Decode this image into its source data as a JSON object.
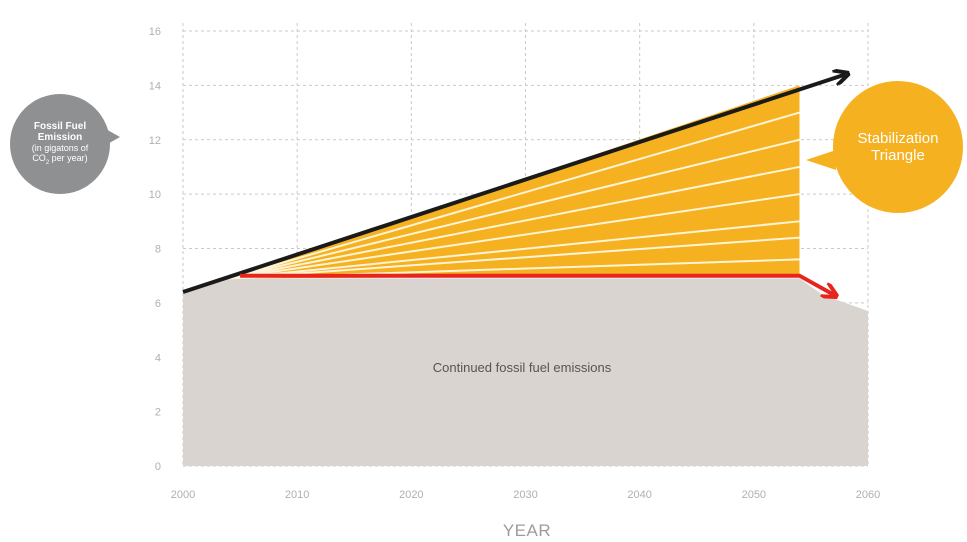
{
  "chart_data": {
    "type": "area",
    "xlabel": "YEAR",
    "xlim": [
      2000,
      2060
    ],
    "ylim": [
      0,
      16
    ],
    "x_ticks": [
      "2000",
      "2010",
      "2020",
      "2030",
      "2040",
      "2050",
      "2060"
    ],
    "y_ticks": [
      "0",
      "2",
      "4",
      "6",
      "8",
      "10",
      "12",
      "14",
      "16"
    ],
    "grid": true,
    "series": [
      {
        "name": "Continued fossil fuel emissions",
        "kind": "area",
        "color": "#d9d4cf",
        "x": [
          2000,
          2004,
          2054,
          2056,
          2058,
          2060
        ],
        "y": [
          6.4,
          6.9,
          6.9,
          6.3,
          6.0,
          5.7
        ]
      },
      {
        "name": "Stabilization Triangle",
        "kind": "wedge",
        "color": "#f5b120",
        "x": [
          2004,
          2054
        ],
        "lower": [
          6.9,
          7.0
        ],
        "upper": [
          6.9,
          14.0
        ],
        "divider_ends": [
          7.6,
          8.4,
          9.0,
          10.0,
          11.0,
          12.0,
          13.0
        ]
      },
      {
        "kind": "black-arrow",
        "color": "#1a1a1a",
        "x": [
          2000,
          2058
        ],
        "y": [
          6.4,
          14.4
        ]
      },
      {
        "kind": "red-arrow",
        "color": "#e8251d",
        "x": [
          2005,
          2054,
          2057
        ],
        "y": [
          7.0,
          7.0,
          6.3
        ]
      }
    ],
    "annotations": {
      "band_label": "Continued fossil fuel emissions",
      "left_bubble": {
        "title_line1": "Fossil Fuel",
        "title_line2": "Emission",
        "sub_line1": "(in gigatons of",
        "sub_line2_a": "CO",
        "sub_line2_sub": "2",
        "sub_line2_b": " per year)"
      },
      "right_bubble": {
        "line1": "Stabilization",
        "line2": "Triangle"
      }
    }
  }
}
